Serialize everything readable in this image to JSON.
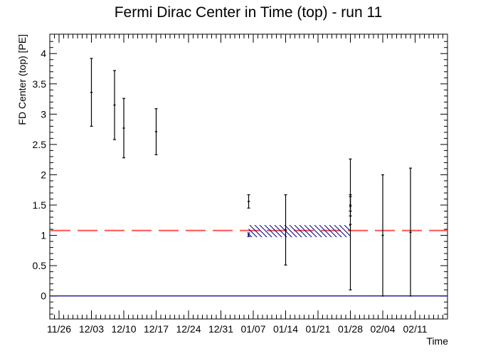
{
  "chart_data": {
    "type": "scatter",
    "title": "Fermi Dirac Center in Time (top) - run 11",
    "xlabel": "Time",
    "ylabel": "FD Center (top) [PE]",
    "x_axis": {
      "type": "date",
      "range": [
        "2019-11-24",
        "2020-02-18"
      ],
      "ticks": [
        {
          "date": "2019-11-26",
          "label": "11/26"
        },
        {
          "date": "2019-12-03",
          "label": "12/03"
        },
        {
          "date": "2019-12-10",
          "label": "12/10"
        },
        {
          "date": "2019-12-17",
          "label": "12/17"
        },
        {
          "date": "2019-12-24",
          "label": "12/24"
        },
        {
          "date": "2019-12-31",
          "label": "12/31"
        },
        {
          "date": "2020-01-07",
          "label": "01/07"
        },
        {
          "date": "2020-01-14",
          "label": "01/14"
        },
        {
          "date": "2020-01-21",
          "label": "01/21"
        },
        {
          "date": "2020-01-28",
          "label": "01/28"
        },
        {
          "date": "2020-02-04",
          "label": "02/04"
        },
        {
          "date": "2020-02-11",
          "label": "02/11"
        }
      ]
    },
    "ylim": [
      -0.38,
      4.32
    ],
    "yticks": [
      0,
      0.5,
      1,
      1.5,
      2,
      2.5,
      3,
      3.5,
      4
    ],
    "ytick_labels": [
      "0",
      "0.5",
      "1",
      "1.5",
      "2",
      "2.5",
      "3",
      "3.5",
      "4"
    ],
    "grid": false,
    "points": [
      {
        "x": "2019-12-03",
        "y": 3.36,
        "ylow": 2.8,
        "yhigh": 3.92,
        "color": "#000000"
      },
      {
        "x": "2019-12-08",
        "y": 3.15,
        "ylow": 2.58,
        "yhigh": 3.72,
        "color": "#000000"
      },
      {
        "x": "2019-12-10",
        "y": 2.77,
        "ylow": 2.28,
        "yhigh": 3.26,
        "color": "#000000"
      },
      {
        "x": "2019-12-17",
        "y": 2.71,
        "ylow": 2.33,
        "yhigh": 3.09,
        "color": "#000000"
      },
      {
        "x": "2020-01-06",
        "y": 1.56,
        "ylow": 1.45,
        "yhigh": 1.67,
        "color": "#000000"
      },
      {
        "x": "2020-01-06",
        "y": 1.01,
        "ylow": 0.98,
        "yhigh": 1.04,
        "color": "#000080"
      },
      {
        "x": "2020-01-14",
        "y": 1.09,
        "ylow": 0.51,
        "yhigh": 1.67,
        "color": "#000000"
      },
      {
        "x": "2020-01-28",
        "y": 1.18,
        "ylow": 0.1,
        "yhigh": 2.26,
        "color": "#000000"
      },
      {
        "x": "2020-01-28",
        "y": 1.48,
        "ylow": 1.32,
        "yhigh": 1.64,
        "color": "#000000"
      },
      {
        "x": "2020-01-28",
        "y": 1.5,
        "ylow": 1.4,
        "yhigh": 1.67,
        "color": "#000000"
      },
      {
        "x": "2020-02-04",
        "y": 1.0,
        "ylow": 0.0,
        "yhigh": 2.0,
        "color": "#000000"
      },
      {
        "x": "2020-02-10",
        "y": 1.05,
        "ylow": 0.0,
        "yhigh": 2.11,
        "color": "#000000"
      }
    ],
    "reference_lines": [
      {
        "y": 1.08,
        "style": "dashed",
        "color": "#ff5555"
      },
      {
        "y": 0,
        "style": "solid",
        "color": "#000080"
      }
    ],
    "band": {
      "x": [
        "2020-01-06",
        "2020-01-28"
      ],
      "ylow": 0.97,
      "yhigh": 1.17,
      "color": "#000080",
      "fill": "hatched"
    }
  }
}
